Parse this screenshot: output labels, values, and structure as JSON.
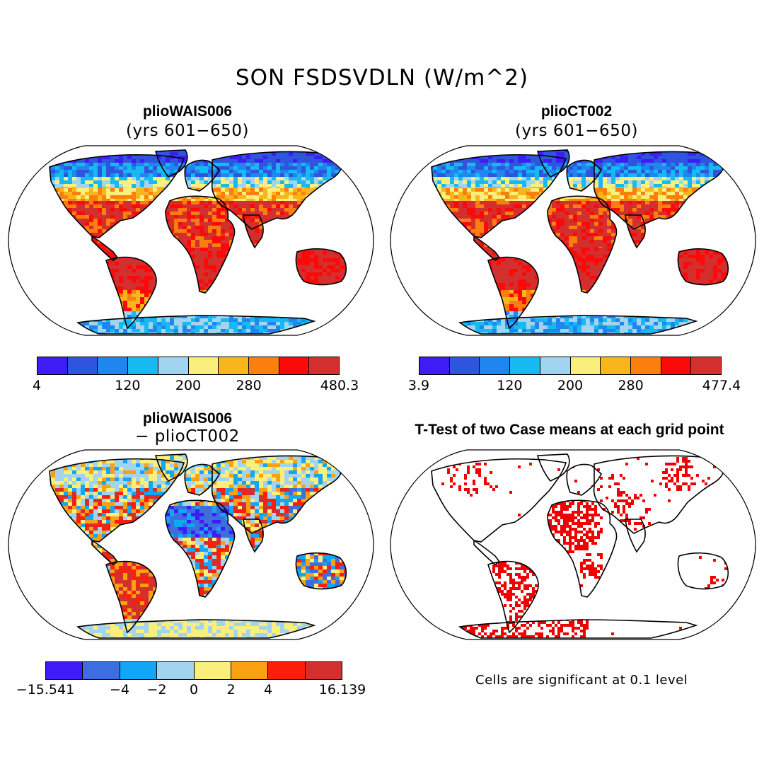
{
  "title": "SON FSDSVDLN (W/m^2)",
  "panels": [
    {
      "id": "case1",
      "title": "plioWAIS006",
      "subtitle": "(yrs 601−650)"
    },
    {
      "id": "case2",
      "title": "plioCT002",
      "subtitle": "(yrs 601−650)"
    },
    {
      "id": "diff",
      "title": "plioWAIS006",
      "subtitle": "− plioCT002"
    },
    {
      "id": "ttest",
      "title": "T-Test of two Case means at each grid point",
      "subtitle": ""
    }
  ],
  "colorbars": {
    "case1": {
      "colors": [
        "#3d1cf5",
        "#2e55de",
        "#1f86ef",
        "#16baf0",
        "#a2d4ef",
        "#faef7a",
        "#fbb51c",
        "#fb7f0e",
        "#fc0a0a",
        "#d42f2f"
      ],
      "labels": [
        "4",
        "120",
        "200",
        "280",
        "480.3"
      ]
    },
    "case2": {
      "colors": [
        "#3d1cf5",
        "#2e55de",
        "#1f86ef",
        "#16baf0",
        "#a2d4ef",
        "#faef7a",
        "#fbb51c",
        "#fb7f0e",
        "#fc0a0a",
        "#d42f2f"
      ],
      "labels": [
        "3.9",
        "120",
        "200",
        "280",
        "477.4"
      ]
    },
    "diff": {
      "colors": [
        "#3d1cf5",
        "#3d6ee0",
        "#13a6f4",
        "#a2d4ef",
        "#faef7a",
        "#fba012",
        "#fc1e0a",
        "#d42f2f"
      ],
      "labels": [
        "−15.541",
        "−4",
        "−2",
        "0",
        "2",
        "4",
        "16.139"
      ]
    }
  },
  "significance_note": "Cells are significant at 0.1 level",
  "significance_color": "#f00000"
}
